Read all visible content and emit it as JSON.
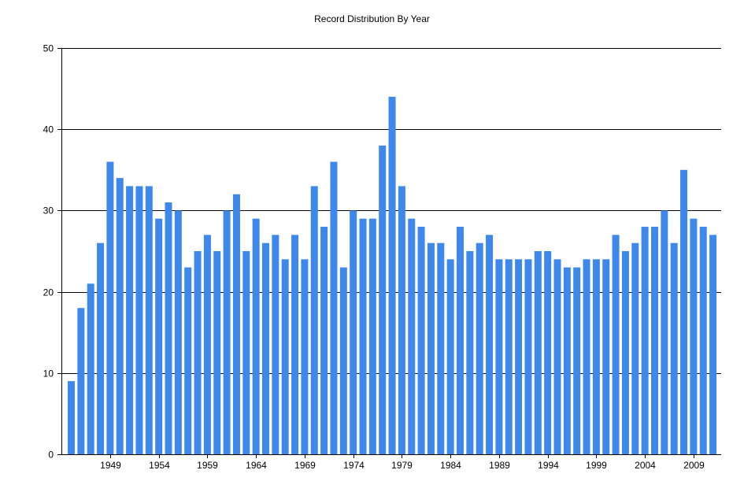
{
  "chart_data": {
    "type": "bar",
    "title": "Record Distribution By Year",
    "xlabel": "",
    "ylabel": "",
    "ylim": [
      0,
      50
    ],
    "yticks": [
      "0",
      "10",
      "20",
      "30",
      "40",
      "50"
    ],
    "grid": true,
    "bar_color": "#3e88ec",
    "x_tick_labels": [
      "1949",
      "1954",
      "1959",
      "1964",
      "1969",
      "1974",
      "1979",
      "1984",
      "1989",
      "1994",
      "1999",
      "2004",
      "2009"
    ],
    "categories": [
      1945,
      1946,
      1947,
      1948,
      1949,
      1950,
      1951,
      1952,
      1953,
      1954,
      1955,
      1956,
      1957,
      1958,
      1959,
      1960,
      1961,
      1962,
      1963,
      1964,
      1965,
      1966,
      1967,
      1968,
      1969,
      1970,
      1971,
      1972,
      1973,
      1974,
      1975,
      1976,
      1977,
      1978,
      1979,
      1980,
      1981,
      1982,
      1983,
      1984,
      1985,
      1986,
      1987,
      1988,
      1989,
      1990,
      1991,
      1992,
      1993,
      1994,
      1995,
      1996,
      1997,
      1998,
      1999,
      2000,
      2001,
      2002,
      2003,
      2004,
      2005,
      2006,
      2007,
      2008,
      2009,
      2010,
      2011
    ],
    "values": [
      9,
      18,
      21,
      26,
      36,
      34,
      33,
      33,
      33,
      29,
      31,
      30,
      23,
      25,
      27,
      25,
      30,
      32,
      25,
      29,
      26,
      27,
      24,
      27,
      24,
      33,
      28,
      36,
      23,
      30,
      29,
      29,
      38,
      44,
      33,
      29,
      28,
      26,
      26,
      24,
      28,
      25,
      26,
      27,
      24,
      24,
      24,
      24,
      25,
      25,
      24,
      23,
      23,
      24,
      24,
      24,
      27,
      25,
      26,
      28,
      28,
      30,
      26,
      35,
      29,
      28,
      27
    ]
  }
}
